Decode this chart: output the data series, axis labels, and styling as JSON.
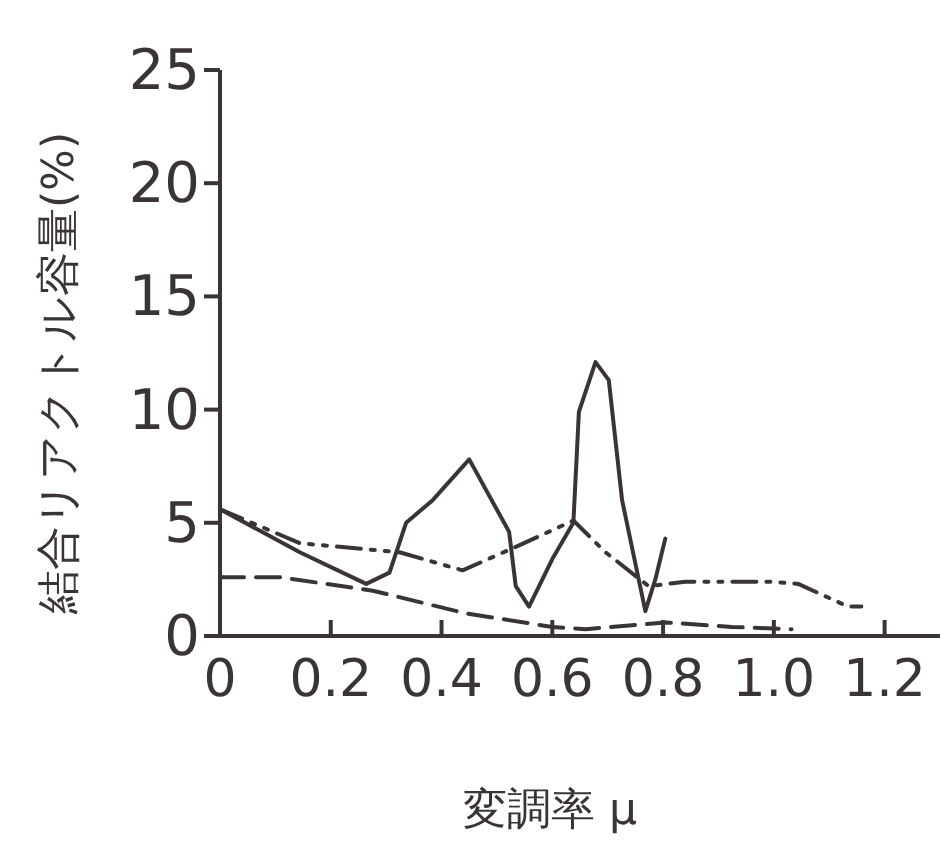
{
  "chart_data": {
    "type": "line",
    "xlabel": "変調率 μ",
    "ylabel": "結合リアクトル容量(%)",
    "xlim": [
      0,
      1.3
    ],
    "ylim": [
      0,
      25
    ],
    "xticks": [
      0,
      0.2,
      0.4,
      0.6,
      0.8,
      {
        "value": 1,
        "label": "1.0"
      },
      1.2
    ],
    "yticks": [
      0,
      5,
      10,
      15,
      20,
      25
    ],
    "grid": false,
    "series": [
      {
        "color": "#3a3438",
        "line_style": "solid",
        "x": [
          0,
          0.144,
          0.264,
          0.306,
          0.336,
          0.384,
          0.45,
          0.522,
          0.534,
          0.558,
          0.6,
          0.638,
          0.648,
          0.678,
          0.702,
          0.726,
          0.756,
          0.768,
          0.786,
          0.804
        ],
        "values": [
          5.6,
          3.7,
          2.3,
          2.8,
          5.0,
          6.0,
          7.8,
          4.6,
          2.2,
          1.3,
          3.4,
          5.0,
          9.9,
          12.1,
          11.3,
          6.0,
          2.5,
          1.1,
          2.5,
          4.3
        ]
      },
      {
        "color": "#3a3438",
        "line_style": "dashdot",
        "x": [
          0,
          0.144,
          0.324,
          0.438,
          0.54,
          0.638,
          0.696,
          0.774,
          0.84,
          0.996,
          1.044,
          1.134,
          1.158
        ],
        "values": [
          5.6,
          4.1,
          3.7,
          2.9,
          4.0,
          5.1,
          3.7,
          2.2,
          2.4,
          2.4,
          2.3,
          1.3,
          1.3
        ]
      },
      {
        "color": "#3a3438",
        "line_style": "dashed",
        "x": [
          0,
          0.108,
          0.276,
          0.444,
          0.6,
          0.66,
          0.804,
          0.924,
          1.032
        ],
        "values": [
          2.6,
          2.6,
          2.0,
          1.0,
          0.4,
          0.3,
          0.6,
          0.4,
          0.3
        ]
      }
    ]
  }
}
